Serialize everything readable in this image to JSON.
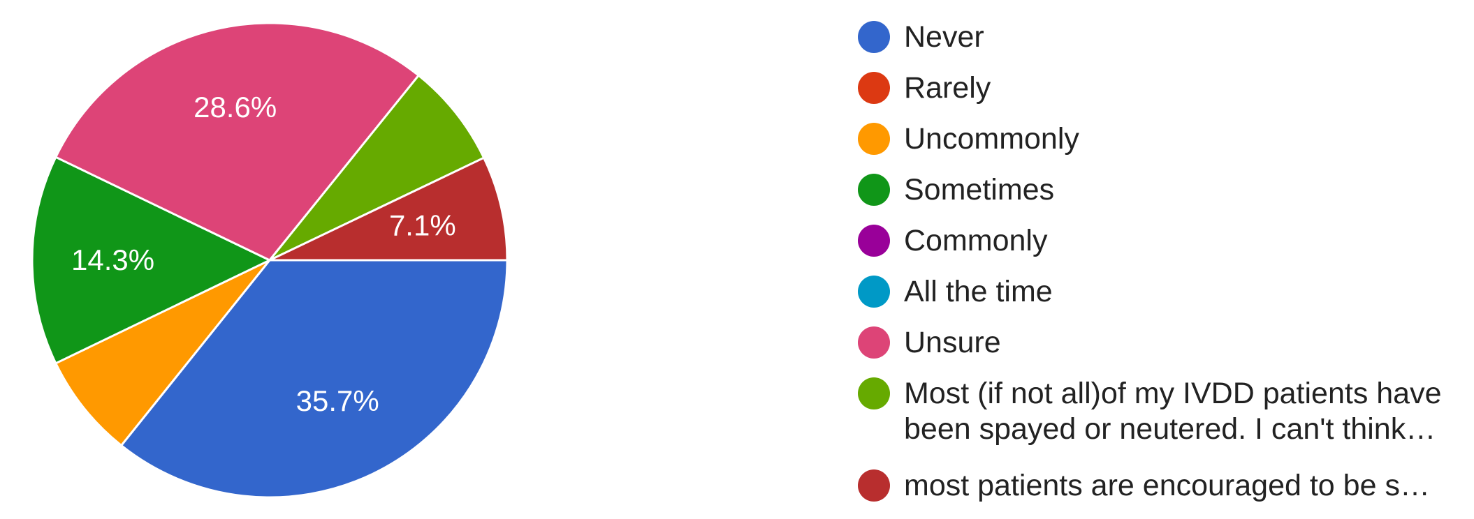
{
  "chart_data": {
    "type": "pie",
    "series": [
      {
        "label": "Never",
        "value": 35.7,
        "color": "#3366cc",
        "data_label": "35.7%"
      },
      {
        "label": "Rarely",
        "value": 0,
        "color": "#dc3912",
        "data_label": ""
      },
      {
        "label": "Uncommonly",
        "value": 7.1,
        "color": "#ff9900",
        "data_label": ""
      },
      {
        "label": "Sometimes",
        "value": 14.3,
        "color": "#109618",
        "data_label": "14.3%"
      },
      {
        "label": "Commonly",
        "value": 0,
        "color": "#990099",
        "data_label": ""
      },
      {
        "label": "All the time",
        "value": 0,
        "color": "#0099c6",
        "data_label": ""
      },
      {
        "label": "Unsure",
        "value": 28.6,
        "color": "#dd4477",
        "data_label": "28.6%"
      },
      {
        "label": "Most (if not all)of my IVDD patients have been spayed or neutered. I can't think…",
        "value": 7.1,
        "color": "#66aa00",
        "data_label": ""
      },
      {
        "label": "most patients are encouraged to be s…",
        "value": 7.1,
        "color": "#b82e2e",
        "data_label": "7.1%"
      }
    ],
    "start_angle_deg": 0,
    "direction": "clockwise",
    "legend_position": "right"
  }
}
